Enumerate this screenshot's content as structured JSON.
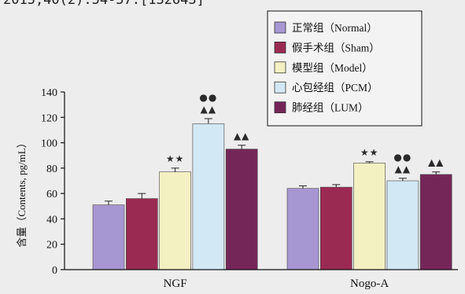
{
  "page": {
    "header_fragment": "2015,40(2):54-57.[132643]",
    "background_color": "#eeeded"
  },
  "chart_data": {
    "type": "bar",
    "title": "",
    "xlabel": "",
    "ylabel": "含量（Contents, pg/mL）",
    "categories": [
      "NGF",
      "Nogo-A"
    ],
    "ylim": [
      0,
      140
    ],
    "yticks": [
      0,
      20,
      40,
      60,
      80,
      100,
      120,
      140
    ],
    "grid": false,
    "legend_position": "top-right",
    "series": [
      {
        "name": "正常组（Normal）",
        "color": "#a697d2",
        "values": [
          51,
          64
        ],
        "errors": [
          3,
          2
        ],
        "annotations": [
          [],
          []
        ]
      },
      {
        "name": "假手术组（Sham）",
        "color": "#9b2a52",
        "values": [
          56,
          65
        ],
        "errors": [
          4,
          2
        ],
        "annotations": [
          [],
          []
        ]
      },
      {
        "name": "模型组（Model）",
        "color": "#f3f1c2",
        "values": [
          77,
          84
        ],
        "errors": [
          3,
          1
        ],
        "annotations": [
          [
            "★★"
          ],
          [
            "★★"
          ]
        ]
      },
      {
        "name": "心包经组（PCM）",
        "color": "#d3e8f5",
        "values": [
          115,
          70
        ],
        "errors": [
          4,
          2
        ],
        "annotations": [
          [
            "●●",
            "▲▲"
          ],
          [
            "●●",
            "▲▲"
          ]
        ]
      },
      {
        "name": "肺经组（LUM）",
        "color": "#752659",
        "values": [
          95,
          75
        ],
        "errors": [
          3,
          2
        ],
        "annotations": [
          [
            "▲▲"
          ],
          [
            "▲▲"
          ]
        ]
      }
    ]
  }
}
